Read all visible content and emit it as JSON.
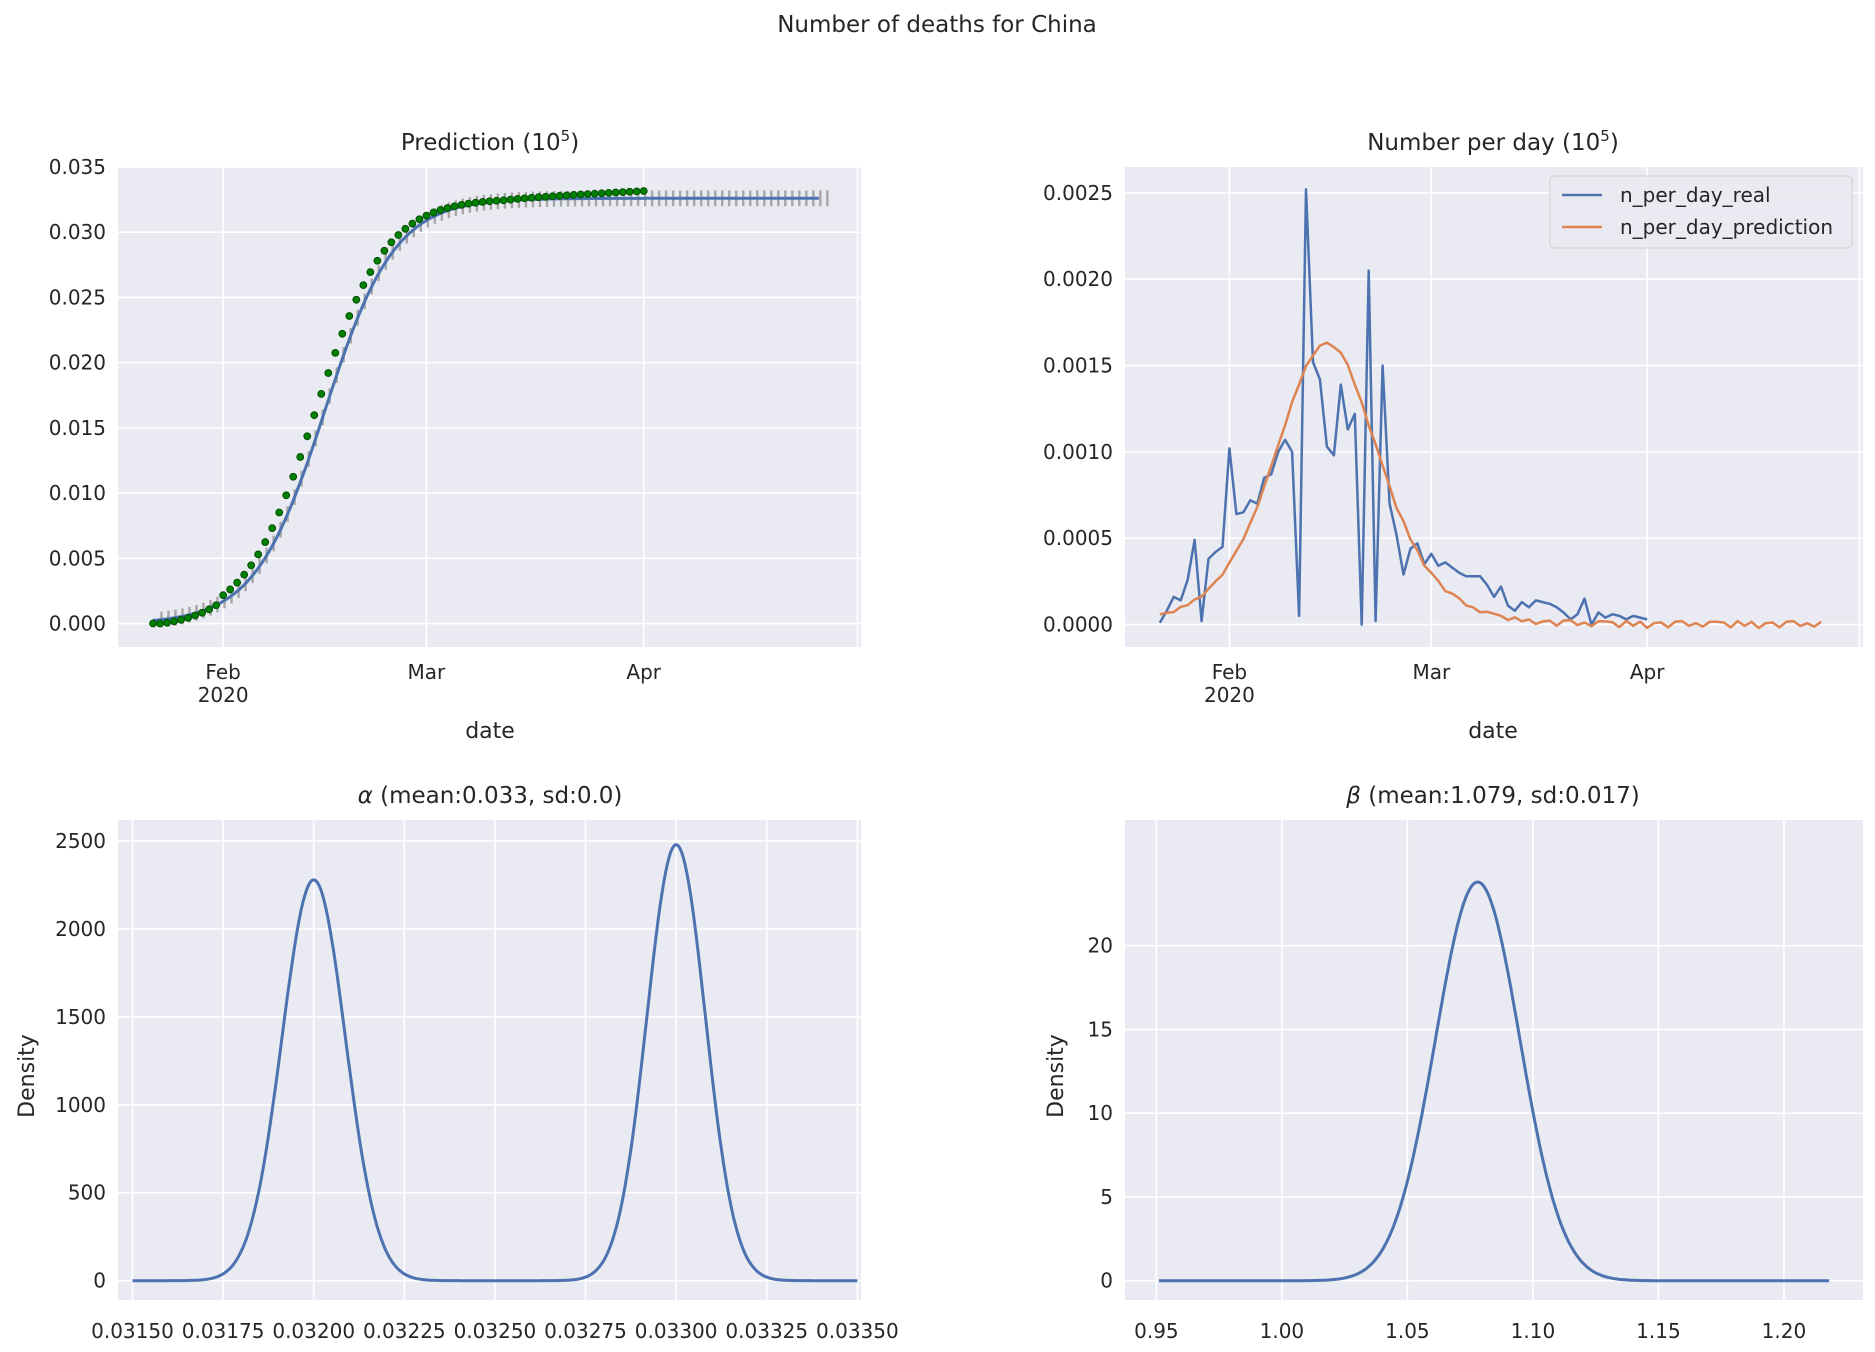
{
  "figure": {
    "suptitle": "Number of deaths for China"
  },
  "colors": {
    "facecolor": "#eaeaf2",
    "grid": "#ffffff",
    "blue": "#4c72b0",
    "orange": "#dd8452",
    "green": "#008000",
    "band": "#a6a6a6"
  },
  "chart_data": [
    {
      "type": "line",
      "title": "Prediction (10^5)",
      "xlabel": "date",
      "ylabel": "",
      "ylim": [
        -0.0018,
        0.035
      ],
      "yticks": [
        "0.000",
        "0.005",
        "0.010",
        "0.015",
        "0.020",
        "0.025",
        "0.030",
        "0.035"
      ],
      "xticks": [
        {
          "day": 10,
          "label": "Feb",
          "sub": "2020"
        },
        {
          "day": 39,
          "label": "Mar",
          "sub": ""
        },
        {
          "day": 70,
          "label": "Apr",
          "sub": ""
        }
      ],
      "x_unit": "days since 2020-01-22",
      "xlim": [
        -5,
        101
      ],
      "grid": true,
      "series": [
        {
          "name": "",
          "kind": "logistic-fit",
          "L": 0.0326,
          "k": 0.2,
          "x0": 24.5,
          "start": 0,
          "end": 95,
          "color": "#4c72b0"
        },
        {
          "name": "",
          "kind": "observed-points",
          "start": 0,
          "end": 70,
          "final": 0.0332,
          "color": "#008000"
        },
        {
          "name": "",
          "kind": "prediction-band",
          "start": 0,
          "end": 95,
          "halfwidth": 0.0006,
          "color": "#a6a6a6"
        }
      ]
    },
    {
      "type": "line",
      "title": "Number per day (10^5)",
      "xlabel": "date",
      "ylabel": "",
      "ylim": [
        -0.00013,
        0.00265
      ],
      "yticks": [
        "0.0000",
        "0.0005",
        "0.0010",
        "0.0015",
        "0.0020",
        "0.0025"
      ],
      "xticks": [
        {
          "day": 10,
          "label": "Feb",
          "sub": "2020"
        },
        {
          "day": 39,
          "label": "Mar",
          "sub": ""
        },
        {
          "day": 70,
          "label": "Apr",
          "sub": ""
        }
      ],
      "xlim": [
        -5,
        101
      ],
      "grid": true,
      "legend": "top-right",
      "series": [
        {
          "name": "n_per_day_real",
          "color": "#4c72b0",
          "x_start": 0,
          "values": [
            1e-05,
            8e-05,
            0.00016,
            0.00014,
            0.00026,
            0.00049,
            2e-05,
            0.00038,
            0.00042,
            0.00045,
            0.00102,
            0.00064,
            0.00065,
            0.00072,
            0.0007,
            0.00085,
            0.00087,
            0.001,
            0.00107,
            0.001,
            5e-05,
            0.00252,
            0.00152,
            0.00142,
            0.00103,
            0.00098,
            0.00139,
            0.00113,
            0.00122,
            0.0,
            0.00205,
            2e-05,
            0.0015,
            0.0007,
            0.00052,
            0.00029,
            0.00044,
            0.00047,
            0.00035,
            0.00041,
            0.00034,
            0.00036,
            0.00033,
            0.0003,
            0.00028,
            0.00028,
            0.00028,
            0.00023,
            0.00016,
            0.00022,
            0.00011,
            8e-05,
            0.00013,
            0.0001,
            0.00014,
            0.00013,
            0.00012,
            0.0001,
            7e-05,
            3e-05,
            6e-05,
            0.00015,
            0.0,
            7e-05,
            4e-05,
            6e-05,
            5e-05,
            3e-05,
            5e-05,
            4e-05,
            3e-05
          ]
        },
        {
          "name": "n_per_day_prediction",
          "color": "#dd8452",
          "kind": "derivative",
          "noise": [
            2e-05,
            1.5e-05,
            -2e-05,
            2.5e-05,
            -1e-05,
            2e-05,
            -2.5e-05,
            1e-05,
            1.5e-05,
            -2e-05,
            2e-05,
            2.5e-05,
            -1e-05,
            1e-05,
            -1.5e-05,
            2e-05
          ]
        }
      ]
    },
    {
      "type": "line",
      "title": "α (mean:0.033, sd:0.0)",
      "xlabel": "",
      "ylabel": "Density",
      "xlim": [
        0.03146,
        0.03351
      ],
      "ylim": [
        -110,
        2620
      ],
      "xticks": [
        "0.03150",
        "0.03175",
        "0.03200",
        "0.03225",
        "0.03250",
        "0.03275",
        "0.03300",
        "0.03325",
        "0.03350"
      ],
      "yticks": [
        "0",
        "500",
        "1000",
        "1500",
        "2000",
        "2500"
      ],
      "grid": true,
      "series": [
        {
          "name": "",
          "kind": "bimodal-kde",
          "range": [
            0.0315,
            0.0335
          ],
          "peaks": [
            {
              "mu": 0.032,
              "sd": 8.75e-05,
              "h": 2280
            },
            {
              "mu": 0.033,
              "sd": 8.06e-05,
              "h": 2480
            }
          ],
          "color": "#4c72b0"
        }
      ]
    },
    {
      "type": "line",
      "title": "β (mean:1.079, sd:0.017)",
      "xlabel": "",
      "ylabel": "Density",
      "xlim": [
        0.9375,
        1.2315
      ],
      "ylim": [
        -1.15,
        27.5
      ],
      "xticks": [
        "0.95",
        "1.00",
        "1.05",
        "1.10",
        "1.15",
        "1.20"
      ],
      "yticks": [
        "0",
        "5",
        "10",
        "15",
        "20"
      ],
      "grid": true,
      "series": [
        {
          "name": "",
          "kind": "kde",
          "range": [
            0.951,
            1.218
          ],
          "peaks": [
            {
              "mu": 1.078,
              "sd": 0.0168,
              "h": 23.8
            }
          ],
          "color": "#4c72b0"
        }
      ]
    }
  ]
}
